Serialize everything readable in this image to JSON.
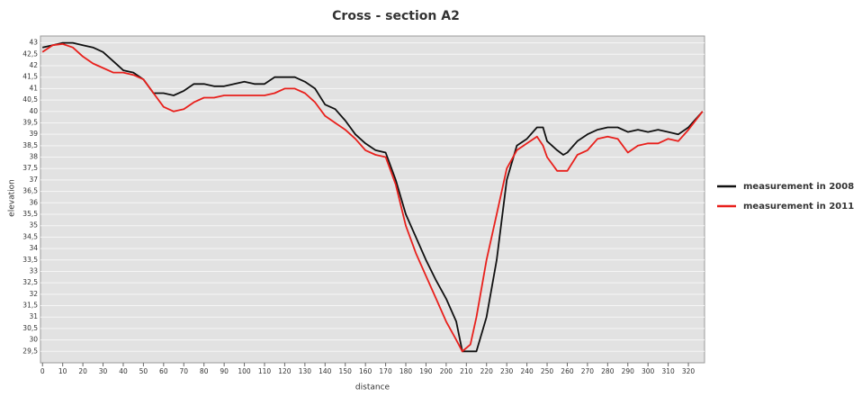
{
  "chart_data": {
    "type": "line",
    "title": "Cross - section A2",
    "xlabel": "distance",
    "ylabel": "elevation",
    "xlim": [
      -1,
      328
    ],
    "ylim": [
      29,
      43.3
    ],
    "xticks": [
      0,
      10,
      20,
      30,
      40,
      50,
      60,
      70,
      80,
      90,
      100,
      110,
      120,
      130,
      140,
      150,
      160,
      170,
      180,
      190,
      200,
      210,
      220,
      230,
      240,
      250,
      260,
      270,
      280,
      290,
      300,
      310,
      320
    ],
    "yticks": [
      {
        "value": 29.5,
        "label": "29,5"
      },
      30,
      {
        "value": 30.5,
        "label": "30,5"
      },
      31,
      {
        "value": 31.5,
        "label": "31,5"
      },
      32,
      {
        "value": 32.5,
        "label": "32,5"
      },
      33,
      {
        "value": 33.5,
        "label": "33,5"
      },
      34,
      {
        "value": 34.5,
        "label": "34,5"
      },
      35,
      {
        "value": 35.5,
        "label": "35,5"
      },
      36,
      {
        "value": 36.5,
        "label": "36,5"
      },
      37,
      {
        "value": 37.5,
        "label": "37,5"
      },
      38,
      {
        "value": 38.5,
        "label": "38,5"
      },
      39,
      {
        "value": 39.5,
        "label": "39,5"
      },
      40,
      {
        "value": 40.5,
        "label": "40,5"
      },
      41,
      {
        "value": 41.5,
        "label": "41,5"
      },
      42,
      {
        "value": 42.5,
        "label": "42,5"
      },
      43
    ],
    "grid": true,
    "legend": "right",
    "series": [
      {
        "name": "measurement in 2008",
        "color": "#111111",
        "x": [
          0,
          5,
          10,
          15,
          20,
          25,
          30,
          35,
          40,
          45,
          50,
          55,
          60,
          65,
          70,
          75,
          80,
          85,
          90,
          95,
          100,
          105,
          110,
          115,
          120,
          125,
          130,
          135,
          140,
          145,
          150,
          155,
          160,
          165,
          170,
          175,
          180,
          185,
          190,
          195,
          200,
          205,
          208,
          210,
          215,
          220,
          225,
          230,
          235,
          240,
          245,
          248,
          250,
          255,
          258,
          260,
          265,
          270,
          275,
          280,
          285,
          290,
          295,
          300,
          305,
          310,
          315,
          320,
          327
        ],
        "values": [
          42.8,
          42.9,
          43.0,
          43.0,
          42.9,
          42.8,
          42.6,
          42.2,
          41.8,
          41.7,
          41.4,
          40.8,
          40.8,
          40.7,
          40.9,
          41.2,
          41.2,
          41.1,
          41.1,
          41.2,
          41.3,
          41.2,
          41.2,
          41.5,
          41.5,
          41.5,
          41.3,
          41.0,
          40.3,
          40.1,
          39.6,
          39.0,
          38.6,
          38.3,
          38.2,
          37.0,
          35.5,
          34.5,
          33.5,
          32.6,
          31.8,
          30.8,
          29.5,
          29.5,
          29.5,
          31.0,
          33.5,
          37.0,
          38.5,
          38.8,
          39.3,
          39.3,
          38.7,
          38.3,
          38.1,
          38.2,
          38.7,
          39.0,
          39.2,
          39.3,
          39.3,
          39.1,
          39.2,
          39.1,
          39.2,
          39.1,
          39.0,
          39.3,
          40.0
        ]
      },
      {
        "name": "measurement in 2011",
        "color": "#e8201c",
        "x": [
          0,
          5,
          10,
          15,
          20,
          25,
          30,
          35,
          40,
          45,
          50,
          55,
          60,
          65,
          70,
          75,
          80,
          85,
          90,
          95,
          100,
          105,
          110,
          115,
          120,
          125,
          130,
          135,
          140,
          145,
          150,
          155,
          160,
          165,
          170,
          175,
          180,
          185,
          190,
          195,
          200,
          205,
          208,
          212,
          215,
          220,
          225,
          230,
          235,
          240,
          245,
          248,
          250,
          255,
          260,
          265,
          270,
          275,
          280,
          285,
          290,
          295,
          300,
          305,
          310,
          315,
          320,
          327
        ],
        "values": [
          42.6,
          42.9,
          42.95,
          42.8,
          42.4,
          42.1,
          41.9,
          41.7,
          41.7,
          41.6,
          41.4,
          40.8,
          40.2,
          40.0,
          40.1,
          40.4,
          40.6,
          40.6,
          40.7,
          40.7,
          40.7,
          40.7,
          40.7,
          40.8,
          41.0,
          41.0,
          40.8,
          40.4,
          39.8,
          39.5,
          39.2,
          38.8,
          38.3,
          38.1,
          38.0,
          36.8,
          35.0,
          33.8,
          32.8,
          31.8,
          30.8,
          30.0,
          29.5,
          29.8,
          31.0,
          33.5,
          35.5,
          37.5,
          38.3,
          38.6,
          38.9,
          38.5,
          38.0,
          37.4,
          37.4,
          38.1,
          38.3,
          38.8,
          38.9,
          38.8,
          38.2,
          38.5,
          38.6,
          38.6,
          38.8,
          38.7,
          39.2,
          40.0
        ]
      }
    ]
  }
}
